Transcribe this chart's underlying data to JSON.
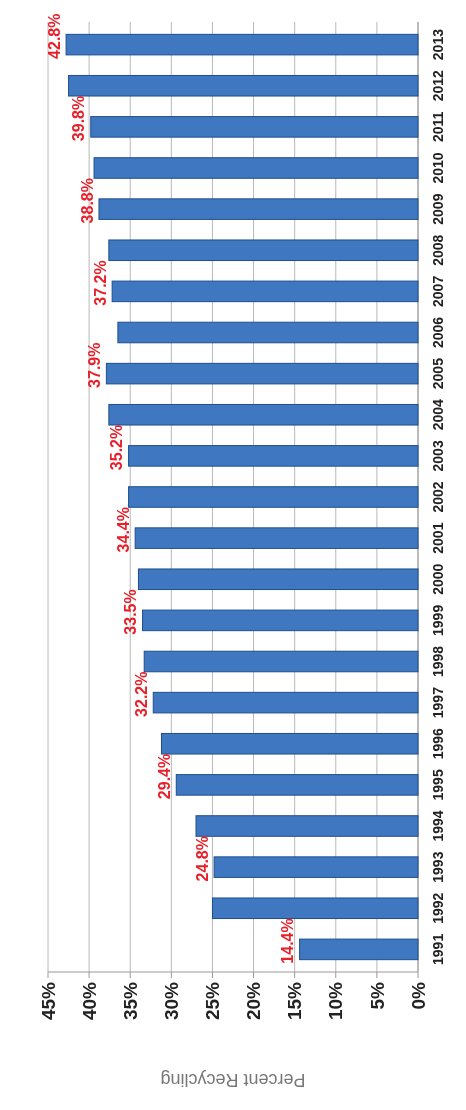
{
  "chart_data": {
    "type": "bar",
    "orientation": "horizontal",
    "xlabel": "Percent Recycling",
    "categories": [
      "2013",
      "2012",
      "2011",
      "2010",
      "2009",
      "2008",
      "2007",
      "2006",
      "2005",
      "2004",
      "2003",
      "2002",
      "2001",
      "2000",
      "1999",
      "1998",
      "1997",
      "1996",
      "1995",
      "1994",
      "1993",
      "1992",
      "1991"
    ],
    "values": [
      42.8,
      42.5,
      39.8,
      39.4,
      38.8,
      37.6,
      37.2,
      36.5,
      37.9,
      37.6,
      35.2,
      35.2,
      34.4,
      34.0,
      33.5,
      33.3,
      32.2,
      31.2,
      29.4,
      27.0,
      24.8,
      25.0,
      14.4
    ],
    "value_labels": [
      "42.8%",
      null,
      "39.8%",
      null,
      "38.8%",
      null,
      "37.2%",
      null,
      "37.9%",
      null,
      "35.2%",
      null,
      "34.4%",
      null,
      "33.5%",
      null,
      "32.2%",
      null,
      "29.4%",
      null,
      "24.8%",
      null,
      "14.4%"
    ],
    "color": "#3f78c0",
    "xlim": [
      45,
      0
    ],
    "xticks": [
      {
        "value": 45,
        "label": "45%"
      },
      {
        "value": 40,
        "label": "40%"
      },
      {
        "value": 35,
        "label": "35%"
      },
      {
        "value": 30,
        "label": "30%"
      },
      {
        "value": 25,
        "label": "25%"
      },
      {
        "value": 20,
        "label": "20%"
      },
      {
        "value": 15,
        "label": "15%"
      },
      {
        "value": 10,
        "label": "10%"
      },
      {
        "value": 5,
        "label": "5%"
      },
      {
        "value": 0,
        "label": "0%"
      }
    ],
    "grid": true
  }
}
